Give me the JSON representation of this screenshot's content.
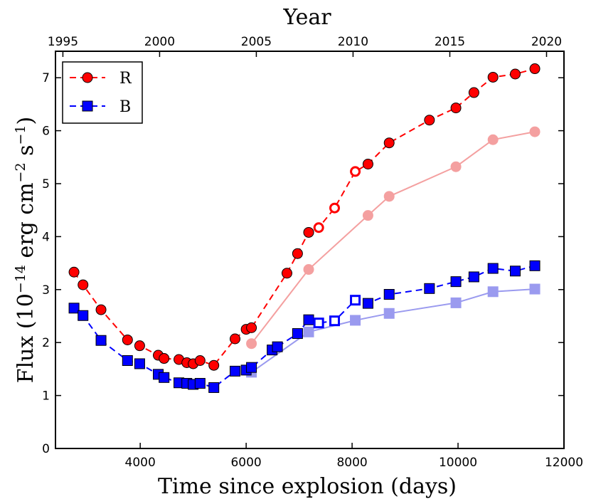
{
  "chart_data": {
    "type": "line",
    "xlabel": "Time since explosion (days)",
    "ylabel": "Flux  (10",
    "ylabel_exp": "−14",
    "ylabel_units": "  erg cm",
    "ylabel_exp2": "−2",
    "ylabel_units2": " s",
    "ylabel_exp3": "−1",
    "ylabel_close": ")",
    "top_xlabel": "Year",
    "xlim": [
      2400,
      12000
    ],
    "ylim": [
      0,
      7.5
    ],
    "x_ticks": [
      4000,
      6000,
      8000,
      10000,
      12000
    ],
    "x_tick_labels": [
      "4000",
      "6000",
      "8000",
      "10000",
      "12000"
    ],
    "y_ticks": [
      0,
      1,
      2,
      3,
      4,
      5,
      6,
      7
    ],
    "y_tick_labels": [
      "0",
      "1",
      "2",
      "3",
      "4",
      "5",
      "6",
      "7"
    ],
    "top_ticks": [
      {
        "label": "1995",
        "day": 2540
      },
      {
        "label": "2000",
        "day": 4366
      },
      {
        "label": "2005",
        "day": 6192
      },
      {
        "label": "2010",
        "day": 8018
      },
      {
        "label": "2015",
        "day": 9845
      },
      {
        "label": "2020",
        "day": 11671
      }
    ],
    "legend": {
      "position": "top-left",
      "entries": [
        "R",
        "B"
      ]
    },
    "colors": {
      "R": "#ff0000",
      "B": "#0000ff",
      "R_faded": "#f4a0a0",
      "B_faded": "#9a9aef"
    },
    "series": [
      {
        "name": "R",
        "marker": "circle",
        "x": [
          2750,
          2920,
          3260,
          3760,
          3990,
          4340,
          4450,
          4730,
          4880,
          5000,
          5130,
          5390,
          5790,
          6000,
          6100,
          6770,
          6970,
          7180,
          7370,
          7670,
          8060,
          8300,
          8700,
          9460,
          9960,
          10300,
          10660,
          11080,
          11450
        ],
        "y": [
          3.33,
          3.09,
          2.62,
          2.05,
          1.94,
          1.76,
          1.7,
          1.68,
          1.62,
          1.6,
          1.66,
          1.57,
          2.07,
          2.25,
          2.28,
          3.31,
          3.68,
          4.08,
          4.17,
          4.54,
          5.23,
          5.37,
          5.77,
          6.2,
          6.43,
          6.72,
          7.01,
          7.07,
          7.17
        ],
        "hollow": [
          false,
          false,
          false,
          false,
          false,
          false,
          false,
          false,
          false,
          false,
          false,
          false,
          false,
          false,
          false,
          false,
          false,
          false,
          true,
          true,
          true,
          false,
          false,
          false,
          false,
          false,
          false,
          false,
          false
        ]
      },
      {
        "name": "B",
        "marker": "square",
        "x": [
          2750,
          2920,
          3260,
          3760,
          3990,
          4340,
          4450,
          4730,
          4880,
          5000,
          5130,
          5390,
          5790,
          6000,
          6100,
          6490,
          6590,
          6970,
          7180,
          7370,
          7670,
          8060,
          8300,
          8700,
          9460,
          9960,
          10300,
          10660,
          11080,
          11450
        ],
        "y": [
          2.65,
          2.51,
          2.04,
          1.66,
          1.6,
          1.4,
          1.34,
          1.24,
          1.23,
          1.21,
          1.23,
          1.15,
          1.46,
          1.48,
          1.53,
          1.86,
          1.92,
          2.17,
          2.43,
          2.37,
          2.41,
          2.8,
          2.74,
          2.91,
          3.02,
          3.15,
          3.24,
          3.4,
          3.35,
          3.45
        ],
        "hollow": [
          false,
          false,
          false,
          false,
          false,
          false,
          false,
          false,
          false,
          false,
          false,
          false,
          false,
          false,
          false,
          false,
          false,
          false,
          false,
          true,
          true,
          true,
          false,
          false,
          false,
          false,
          false,
          false,
          false,
          false
        ]
      },
      {
        "marker": "circle",
        "faded": true,
        "color_key": "R_faded",
        "x": [
          6100,
          7180,
          8300,
          8700,
          9960,
          10660,
          11450
        ],
        "y": [
          1.98,
          3.38,
          4.4,
          4.76,
          5.32,
          5.83,
          5.98
        ]
      },
      {
        "marker": "square",
        "faded": true,
        "color_key": "B_faded",
        "x": [
          6100,
          7180,
          8060,
          8700,
          9960,
          10660,
          11450
        ],
        "y": [
          1.44,
          2.2,
          2.42,
          2.55,
          2.75,
          2.96,
          3.01
        ]
      }
    ]
  }
}
